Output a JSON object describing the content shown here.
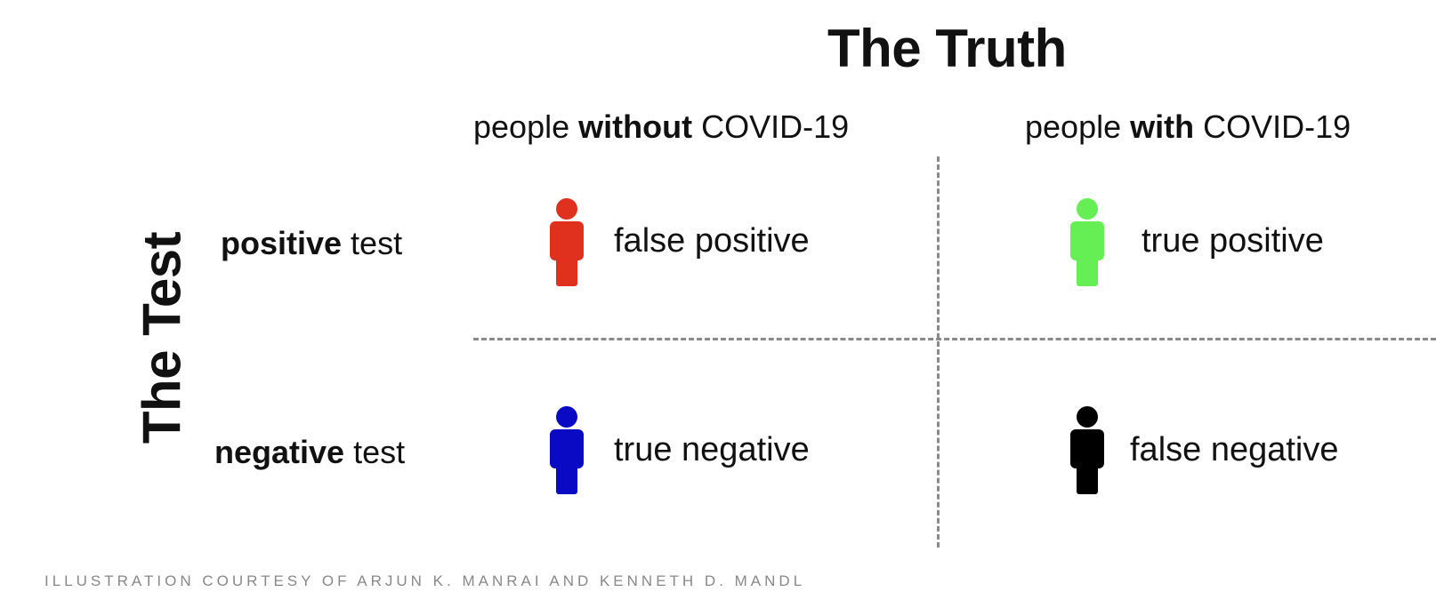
{
  "title_truth": "The Truth",
  "title_test": "The Test",
  "columns": [
    {
      "prefix": "people ",
      "emphasis": "without",
      "suffix": " COVID-19"
    },
    {
      "prefix": "people ",
      "emphasis": "with",
      "suffix": " COVID-19"
    }
  ],
  "rows": [
    {
      "emphasis": "positive",
      "suffix": " test"
    },
    {
      "emphasis": "negative",
      "suffix": " test"
    }
  ],
  "cells": [
    {
      "label": "false positive",
      "color": "#e0301e"
    },
    {
      "label": "true positive",
      "color": "#66ee55"
    },
    {
      "label": "true negative",
      "color": "#0a0ac4"
    },
    {
      "label": "false negative",
      "color": "#000000"
    }
  ],
  "credit": "ILLUSTRATION COURTESY OF ARJUN K. MANRAI AND KENNETH D. MANDL"
}
